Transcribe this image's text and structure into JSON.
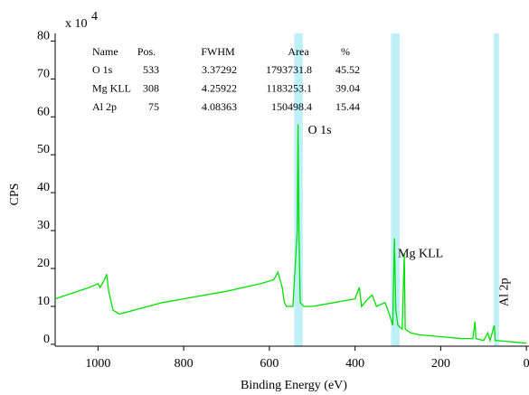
{
  "chart_data": {
    "type": "line",
    "xlabel": "Binding Energy (eV)",
    "ylabel": "CPS",
    "y_multiplier": {
      "base": "x 10",
      "exponent": "4"
    },
    "xlim": [
      1100,
      -6
    ],
    "xticks": [
      1000,
      800,
      600,
      400,
      200,
      0
    ],
    "ylim": [
      -0.5,
      82
    ],
    "yticks": [
      0,
      10,
      20,
      30,
      40,
      50,
      60,
      70,
      80
    ],
    "regions": [
      [
        542,
        522
      ],
      [
        316,
        296
      ],
      [
        76,
        64
      ]
    ],
    "region_color": "#bff0f8",
    "series": [
      {
        "color": "#00e000",
        "x": [
          1100,
          1060,
          1020,
          1000,
          995,
          985,
          980,
          975,
          965,
          950,
          900,
          850,
          800,
          700,
          620,
          590,
          580,
          575,
          570,
          565,
          560,
          545,
          535,
          533,
          531,
          528,
          520,
          500,
          450,
          400,
          390,
          385,
          370,
          360,
          350,
          340,
          330,
          320,
          312,
          308,
          305,
          300,
          290,
          285,
          283,
          270,
          250,
          200,
          150,
          125,
          120,
          118,
          100,
          90,
          85,
          75,
          73,
          50,
          20,
          0
        ],
        "y": [
          12,
          13.5,
          15,
          16,
          15,
          17,
          18.5,
          14,
          9,
          8,
          9.5,
          11,
          12,
          14,
          16,
          17,
          19,
          17,
          15,
          11,
          10,
          10,
          30,
          58,
          30,
          11,
          10,
          10,
          11,
          12,
          15,
          10,
          12,
          13,
          10,
          10.5,
          11,
          8,
          5,
          28,
          9,
          5,
          4,
          24,
          4,
          3,
          2.5,
          2,
          1.5,
          1.5,
          6,
          1.5,
          1,
          3,
          1,
          5,
          1,
          0.8,
          0.5,
          0.3
        ]
      }
    ],
    "annotations": [
      {
        "text": "O 1s",
        "x": 510,
        "y": 55.5,
        "rotate": false
      },
      {
        "text": "Mg KLL",
        "x": 300,
        "y": 23,
        "rotate": false
      },
      {
        "text": "Al 2p",
        "x": 44,
        "y": 10,
        "rotate": true
      }
    ],
    "peak_table": {
      "color": "#ff0000",
      "columns": [
        "Name",
        "Pos.",
        "FWHM",
        "Area",
        "%"
      ],
      "rows": [
        [
          "O 1s",
          533,
          3.37292,
          1793731.8,
          45.52
        ],
        [
          "Mg KLL",
          308,
          4.25922,
          1183253.1,
          39.04
        ],
        [
          "Al 2p",
          75,
          4.08363,
          150498.4,
          15.44
        ]
      ]
    }
  }
}
